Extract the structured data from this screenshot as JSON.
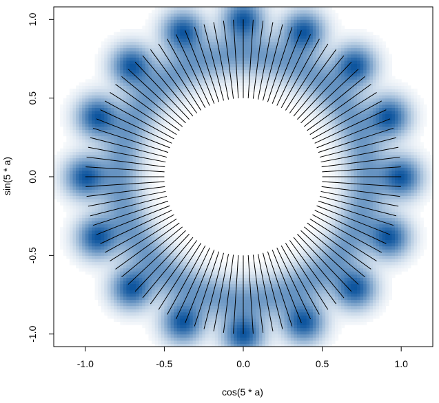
{
  "chart_data": {
    "type": "scatter",
    "subtype": "smoothScatter density with segments",
    "title": "",
    "xlabel": "cos(5 * a)",
    "ylabel": "sin(5 * a)",
    "xlim": [
      -1.2,
      1.2
    ],
    "ylim": [
      -1.08,
      1.08
    ],
    "x_ticks": [
      -1.0,
      -0.5,
      0.0,
      0.5,
      1.0
    ],
    "x_tick_labels": [
      "-1.0",
      "-0.5",
      "0.0",
      "0.5",
      "1.0"
    ],
    "y_ticks": [
      -1.0,
      -0.5,
      0.0,
      0.5,
      1.0
    ],
    "y_tick_labels": [
      "-1.0",
      "-0.5",
      "0.0",
      "0.5",
      "1.0"
    ],
    "grid": false,
    "density": {
      "palette": [
        "#ffffff",
        "#08519c"
      ],
      "n_peaks": 16,
      "peak_radius": 1.0,
      "ring_width_sd": 0.085
    },
    "segments": {
      "count": 100,
      "inner_radius": 0.5,
      "outer_radius": 1.0,
      "color": "#000000"
    }
  }
}
